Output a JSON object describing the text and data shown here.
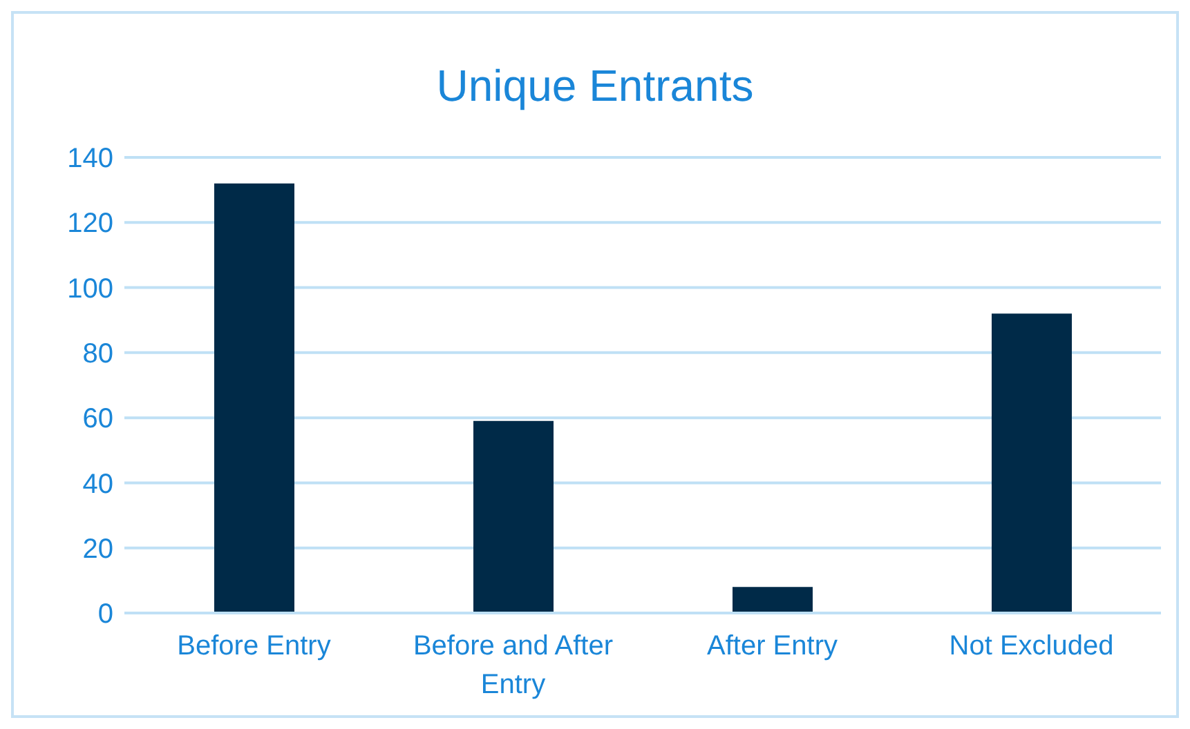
{
  "chart_data": {
    "type": "bar",
    "title": "Unique Entrants",
    "categories": [
      "Before Entry",
      "Before and After Entry",
      "After Entry",
      "Not Excluded"
    ],
    "values": [
      132,
      59,
      8,
      92
    ],
    "color": "#002a48",
    "ylim": [
      0,
      140
    ],
    "yticks": [
      0,
      20,
      40,
      60,
      80,
      100,
      120,
      140
    ],
    "grid": "y"
  }
}
